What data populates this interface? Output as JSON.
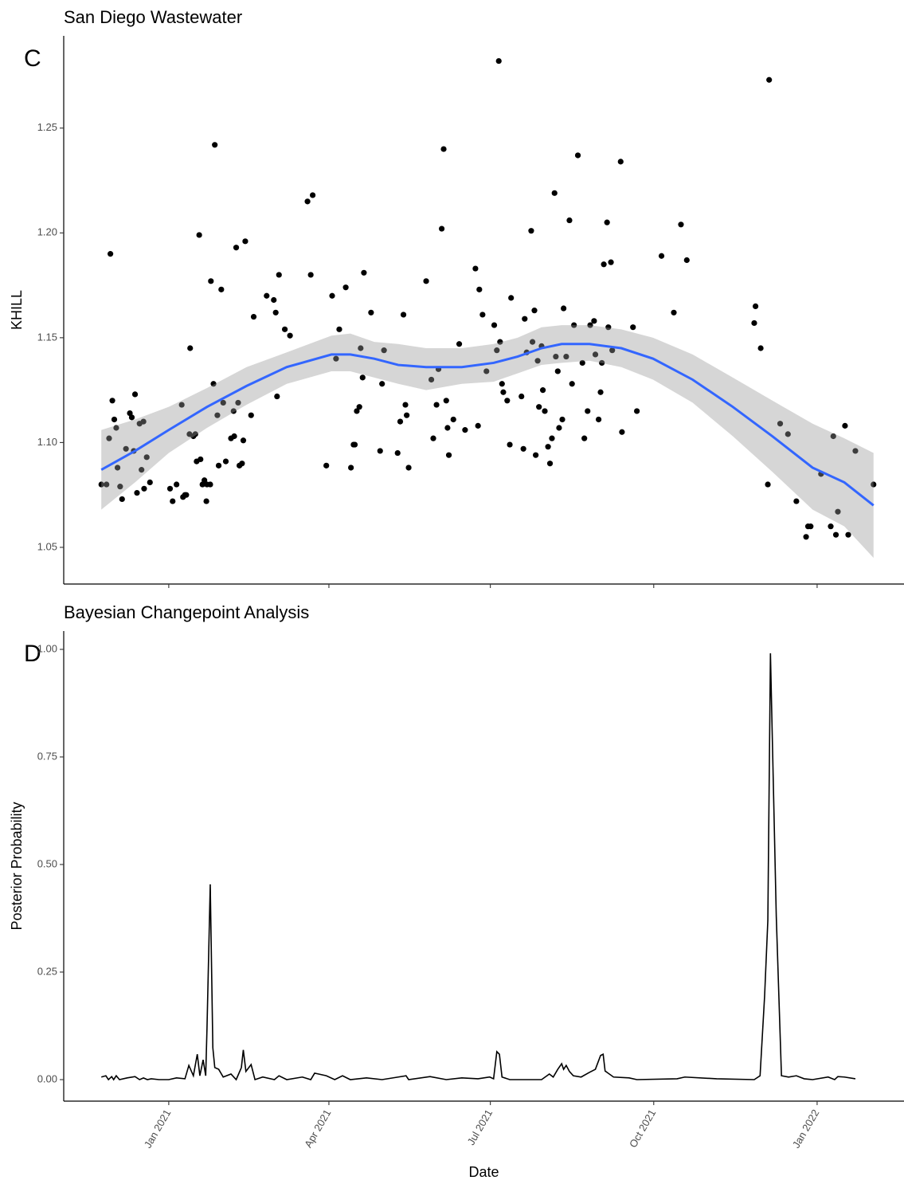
{
  "chart_data": [
    {
      "type": "scatter",
      "title": "San Diego Wastewater",
      "panel_label": "C",
      "y_label": "KHILL",
      "xlim": [
        2020.838,
        2022.134
      ],
      "xticks": [
        2021.0,
        2021.247,
        2021.496,
        2021.748,
        2022.0
      ],
      "ylim": [
        1.0325,
        1.294
      ],
      "yticks": [
        1.05,
        {
          "value": 1.1,
          "label": "1.10"
        },
        1.15,
        {
          "value": 1.2,
          "label": "1.20"
        },
        1.25
      ],
      "color": "#000000",
      "x": [
        2020.896,
        2020.904,
        2020.91,
        2020.908,
        2020.913,
        2020.916,
        2020.919,
        2020.921,
        2020.925,
        2020.928,
        2020.934,
        2020.94,
        2020.943,
        2020.946,
        2020.948,
        2020.951,
        2020.955,
        2020.958,
        2020.961,
        2020.962,
        2020.966,
        2020.971,
        2021.002,
        2021.006,
        2021.012,
        2021.02,
        2021.022,
        2021.025,
        2021.027,
        2021.032,
        2021.033,
        2021.038,
        2021.041,
        2021.043,
        2021.047,
        2021.049,
        2021.052,
        2021.055,
        2021.058,
        2021.059,
        2021.064,
        2021.065,
        2021.069,
        2021.071,
        2021.075,
        2021.077,
        2021.081,
        2021.084,
        2021.088,
        2021.096,
        2021.1,
        2021.101,
        2021.104,
        2021.107,
        2021.109,
        2021.113,
        2021.115,
        2021.118,
        2021.127,
        2021.131,
        2021.151,
        2021.162,
        2021.165,
        2021.167,
        2021.17,
        2021.179,
        2021.187,
        2021.214,
        2021.222,
        2021.219,
        2021.243,
        2021.252,
        2021.258,
        2021.263,
        2021.273,
        2021.281,
        2021.285,
        2021.287,
        2021.29,
        2021.294,
        2021.296,
        2021.299,
        2021.301,
        2021.312,
        2021.326,
        2021.329,
        2021.332,
        2021.353,
        2021.357,
        2021.362,
        2021.365,
        2021.367,
        2021.37,
        2021.397,
        2021.405,
        2021.408,
        2021.413,
        2021.416,
        2021.421,
        2021.424,
        2021.428,
        2021.43,
        2021.432,
        2021.439,
        2021.448,
        2021.457,
        2021.473,
        2021.477,
        2021.479,
        2021.484,
        2021.49,
        2021.502,
        2021.506,
        2021.509,
        2021.511,
        2021.514,
        2021.516,
        2021.522,
        2021.526,
        2021.528,
        2021.544,
        2021.547,
        2021.549,
        2021.552,
        2021.559,
        2021.561,
        2021.564,
        2021.566,
        2021.569,
        2021.571,
        2021.575,
        2021.577,
        2021.58,
        2021.585,
        2021.588,
        2021.591,
        2021.595,
        2021.597,
        2021.6,
        2021.602,
        2021.607,
        2021.609,
        2021.613,
        2021.618,
        2021.622,
        2021.625,
        2021.631,
        2021.638,
        2021.641,
        2021.646,
        2021.65,
        2021.656,
        2021.658,
        2021.663,
        2021.666,
        2021.668,
        2021.671,
        2021.676,
        2021.678,
        2021.682,
        2021.684,
        2021.697,
        2021.699,
        2021.716,
        2021.722,
        2021.76,
        2021.779,
        2021.79,
        2021.799,
        2021.903,
        2021.905,
        2021.913,
        2021.924,
        2021.926,
        2021.943,
        2021.955,
        2021.968,
        2021.983,
        2021.986,
        2021.99,
        2022.006,
        2022.021,
        2022.025,
        2022.029,
        2022.032,
        2022.043,
        2022.048,
        2022.059,
        2022.087
      ],
      "values": [
        1.08,
        1.08,
        1.19,
        1.102,
        1.12,
        1.111,
        1.107,
        1.088,
        1.079,
        1.073,
        1.097,
        1.114,
        1.112,
        1.096,
        1.123,
        1.076,
        1.109,
        1.087,
        1.11,
        1.078,
        1.093,
        1.081,
        1.078,
        1.072,
        1.08,
        1.118,
        1.074,
        1.075,
        1.075,
        1.104,
        1.145,
        1.103,
        1.104,
        1.091,
        1.199,
        1.092,
        1.08,
        1.082,
        1.072,
        1.08,
        1.08,
        1.177,
        1.128,
        1.242,
        1.113,
        1.089,
        1.173,
        1.119,
        1.091,
        1.102,
        1.115,
        1.103,
        1.193,
        1.119,
        1.089,
        1.09,
        1.101,
        1.196,
        1.113,
        1.16,
        1.17,
        1.168,
        1.162,
        1.122,
        1.18,
        1.154,
        1.151,
        1.215,
        1.218,
        1.18,
        1.089,
        1.17,
        1.14,
        1.154,
        1.174,
        1.088,
        1.099,
        1.099,
        1.115,
        1.117,
        1.145,
        1.131,
        1.181,
        1.162,
        1.096,
        1.128,
        1.144,
        1.095,
        1.11,
        1.161,
        1.118,
        1.113,
        1.088,
        1.177,
        1.13,
        1.102,
        1.118,
        1.135,
        1.202,
        1.24,
        1.12,
        1.107,
        1.094,
        1.111,
        1.147,
        1.106,
        1.183,
        1.108,
        1.173,
        1.161,
        1.134,
        1.156,
        1.144,
        1.282,
        1.148,
        1.128,
        1.124,
        1.12,
        1.099,
        1.169,
        1.122,
        1.097,
        1.159,
        1.143,
        1.201,
        1.148,
        1.163,
        1.094,
        1.139,
        1.117,
        1.146,
        1.125,
        1.115,
        1.098,
        1.09,
        1.102,
        1.219,
        1.141,
        1.134,
        1.107,
        1.111,
        1.164,
        1.141,
        1.206,
        1.128,
        1.156,
        1.237,
        1.138,
        1.102,
        1.115,
        1.156,
        1.158,
        1.142,
        1.111,
        1.124,
        1.138,
        1.185,
        1.205,
        1.155,
        1.186,
        1.144,
        1.234,
        1.105,
        1.155,
        1.115,
        1.189,
        1.162,
        1.204,
        1.187,
        1.157,
        1.165,
        1.145,
        1.08,
        1.273,
        1.109,
        1.104,
        1.072,
        1.055,
        1.06,
        1.06,
        1.085,
        1.06,
        1.103,
        1.056,
        1.067,
        1.108,
        1.056,
        1.096,
        1.08
      ],
      "smooth": {
        "color": "#3366ff",
        "band_color": "#999999",
        "x": [
          2020.896,
          2020.948,
          2021.0,
          2021.059,
          2021.12,
          2021.182,
          2021.251,
          2021.28,
          2021.317,
          2021.354,
          2021.397,
          2021.452,
          2021.501,
          2021.538,
          2021.575,
          2021.606,
          2021.649,
          2021.698,
          2021.747,
          2021.808,
          2021.87,
          2021.931,
          2021.993,
          2022.042,
          2022.087
        ],
        "values": [
          1.087,
          1.096,
          1.106,
          1.117,
          1.127,
          1.136,
          1.142,
          1.142,
          1.14,
          1.137,
          1.136,
          1.136,
          1.138,
          1.141,
          1.145,
          1.147,
          1.147,
          1.145,
          1.14,
          1.13,
          1.117,
          1.103,
          1.088,
          1.081,
          1.07
        ],
        "upper": [
          1.106,
          1.111,
          1.117,
          1.126,
          1.136,
          1.143,
          1.151,
          1.152,
          1.148,
          1.147,
          1.145,
          1.145,
          1.147,
          1.15,
          1.155,
          1.156,
          1.156,
          1.154,
          1.15,
          1.142,
          1.131,
          1.12,
          1.109,
          1.102,
          1.095
        ],
        "lower": [
          1.068,
          1.081,
          1.095,
          1.107,
          1.118,
          1.128,
          1.134,
          1.134,
          1.131,
          1.128,
          1.125,
          1.128,
          1.129,
          1.133,
          1.137,
          1.138,
          1.139,
          1.136,
          1.13,
          1.119,
          1.103,
          1.086,
          1.068,
          1.06,
          1.045
        ]
      }
    },
    {
      "type": "line",
      "title": "Bayesian Changepoint Analysis",
      "panel_label": "D",
      "y_label": "Posterior Probability",
      "x_label": "Date",
      "xlim": [
        2020.838,
        2022.134
      ],
      "xticks": [
        {
          "value": 2021.0,
          "label": "Jan 2021"
        },
        {
          "value": 2021.247,
          "label": "Apr 2021"
        },
        {
          "value": 2021.496,
          "label": "Jul 2021"
        },
        {
          "value": 2021.748,
          "label": "Oct 2021"
        },
        {
          "value": 2022.0,
          "label": "Jan 2022"
        }
      ],
      "ylim": [
        -0.05,
        1.0426
      ],
      "yticks": [
        {
          "value": 0,
          "label": "0.00"
        },
        0.25,
        {
          "value": 0.5,
          "label": "0.50"
        },
        0.75,
        {
          "value": 1,
          "label": "1.00"
        }
      ],
      "color": "#000000",
      "x": [
        2020.896,
        2020.903,
        2020.907,
        2020.912,
        2020.915,
        2020.919,
        2020.924,
        2020.936,
        2020.948,
        2020.955,
        2020.961,
        2020.967,
        2020.973,
        2020.985,
        2021.0,
        2021.012,
        2021.025,
        2021.031,
        2021.038,
        2021.044,
        2021.048,
        2021.053,
        2021.057,
        2021.059,
        2021.064,
        2021.068,
        2021.071,
        2021.077,
        2021.084,
        2021.096,
        2021.104,
        2021.112,
        2021.115,
        2021.119,
        2021.127,
        2021.133,
        2021.145,
        2021.163,
        2021.17,
        2021.182,
        2021.206,
        2021.219,
        2021.225,
        2021.243,
        2021.256,
        2021.268,
        2021.28,
        2021.305,
        2021.329,
        2021.354,
        2021.366,
        2021.37,
        2021.403,
        2021.428,
        2021.452,
        2021.477,
        2021.495,
        2021.501,
        2021.506,
        2021.51,
        2021.514,
        2021.526,
        2021.55,
        2021.575,
        2021.587,
        2021.593,
        2021.6,
        2021.606,
        2021.609,
        2021.613,
        2021.618,
        2021.624,
        2021.636,
        2021.649,
        2021.658,
        2021.666,
        2021.67,
        2021.673,
        2021.686,
        2021.71,
        2021.722,
        2021.784,
        2021.796,
        2021.845,
        2021.903,
        2021.912,
        2021.919,
        2021.924,
        2021.928,
        2021.937,
        2021.945,
        2021.956,
        2021.968,
        2021.98,
        2021.993,
        2022.017,
        2022.027,
        2022.032,
        2022.042,
        2022.059
      ],
      "values": [
        0.006,
        0.009,
        0,
        0.007,
        0,
        0.009,
        0,
        0.004,
        0.007,
        0,
        0.004,
        0,
        0.002,
        0,
        0,
        0.004,
        0.002,
        0.033,
        0.009,
        0.059,
        0.009,
        0.046,
        0.009,
        0.12,
        0.454,
        0.074,
        0.028,
        0.024,
        0.006,
        0.013,
        0,
        0.028,
        0.069,
        0.019,
        0.035,
        0,
        0.006,
        0,
        0.009,
        0,
        0.006,
        0,
        0.015,
        0.009,
        0,
        0.009,
        0,
        0.004,
        0,
        0.006,
        0.009,
        0,
        0.007,
        0,
        0.004,
        0.002,
        0.006,
        0.002,
        0.065,
        0.059,
        0.006,
        0,
        0,
        0,
        0.013,
        0.006,
        0.024,
        0.037,
        0.024,
        0.033,
        0.019,
        0.009,
        0.006,
        0.017,
        0.024,
        0.056,
        0.059,
        0.02,
        0.006,
        0.004,
        0,
        0.002,
        0.006,
        0.002,
        0,
        0.009,
        0.194,
        0.37,
        0.991,
        0.38,
        0.009,
        0.006,
        0.009,
        0.002,
        0,
        0.006,
        0,
        0.007,
        0.006,
        0.002
      ]
    }
  ]
}
